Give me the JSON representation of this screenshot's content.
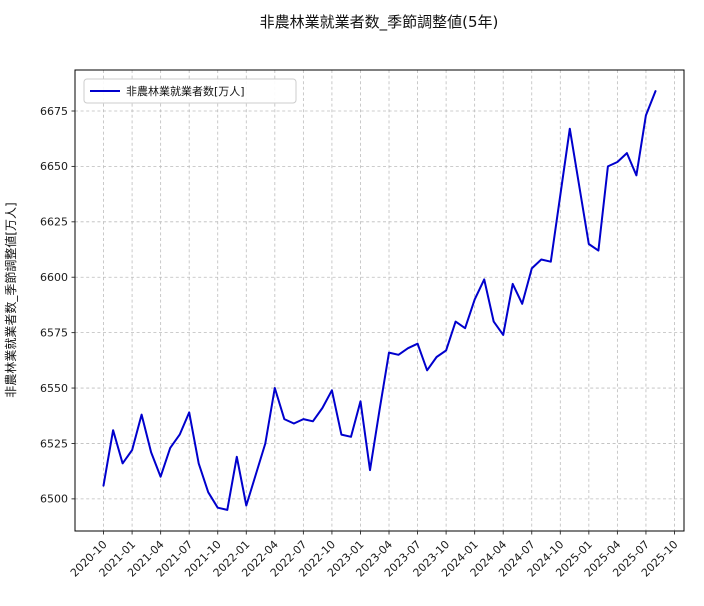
{
  "figure": {
    "title": "非農林業就業者数_季節調整値(5年)"
  },
  "chart_data": {
    "type": "line",
    "title": "非農林業就業者数_季節調整値(5年)",
    "xlabel": "",
    "ylabel": "非農林業就業者数_季節調整値[万人]",
    "legend_label": "非農林業就業者数[万人]",
    "legend_position": "upper left",
    "grid": true,
    "line_color": "#0000cd",
    "x": [
      "2020-10",
      "2020-11",
      "2020-12",
      "2021-01",
      "2021-02",
      "2021-03",
      "2021-04",
      "2021-05",
      "2021-06",
      "2021-07",
      "2021-08",
      "2021-09",
      "2021-10",
      "2021-11",
      "2021-12",
      "2022-01",
      "2022-02",
      "2022-03",
      "2022-04",
      "2022-05",
      "2022-06",
      "2022-07",
      "2022-08",
      "2022-09",
      "2022-10",
      "2022-11",
      "2022-12",
      "2023-01",
      "2023-02",
      "2023-03",
      "2023-04",
      "2023-05",
      "2023-06",
      "2023-07",
      "2023-08",
      "2023-09",
      "2023-10",
      "2023-11",
      "2023-12",
      "2024-01",
      "2024-02",
      "2024-03",
      "2024-04",
      "2024-05",
      "2024-06",
      "2024-07",
      "2024-08",
      "2024-09",
      "2024-10",
      "2024-11",
      "2024-12",
      "2025-01",
      "2025-02",
      "2025-03",
      "2025-04",
      "2025-05",
      "2025-06",
      "2025-07",
      "2025-08"
    ],
    "values": [
      6506,
      6531,
      6516,
      6522,
      6538,
      6521,
      6510,
      6523,
      6529,
      6539,
      6516,
      6503,
      6496,
      6495,
      6519,
      6497,
      6511,
      6525,
      6550,
      6536,
      6534,
      6536,
      6535,
      6541,
      6549,
      6529,
      6528,
      6544,
      6513,
      6540,
      6566,
      6565,
      6568,
      6570,
      6558,
      6564,
      6567,
      6580,
      6577,
      6590,
      6599,
      6580,
      6574,
      6597,
      6588,
      6604,
      6608,
      6607,
      6637,
      6667,
      6641,
      6615,
      6612,
      6650,
      6652,
      6656,
      6646,
      6673,
      6684
    ],
    "xticks": [
      "2020-10",
      "2021-01",
      "2021-04",
      "2021-07",
      "2021-10",
      "2022-01",
      "2022-04",
      "2022-07",
      "2022-10",
      "2023-01",
      "2023-04",
      "2023-07",
      "2023-10",
      "2024-01",
      "2024-04",
      "2024-07",
      "2024-10",
      "2025-01",
      "2025-04",
      "2025-07",
      "2025-10"
    ],
    "yticks": [
      6500,
      6525,
      6550,
      6575,
      6600,
      6625,
      6650,
      6675
    ],
    "xlim_months": [
      -3,
      61
    ],
    "ylim": [
      6485.5,
      6693.5
    ]
  }
}
